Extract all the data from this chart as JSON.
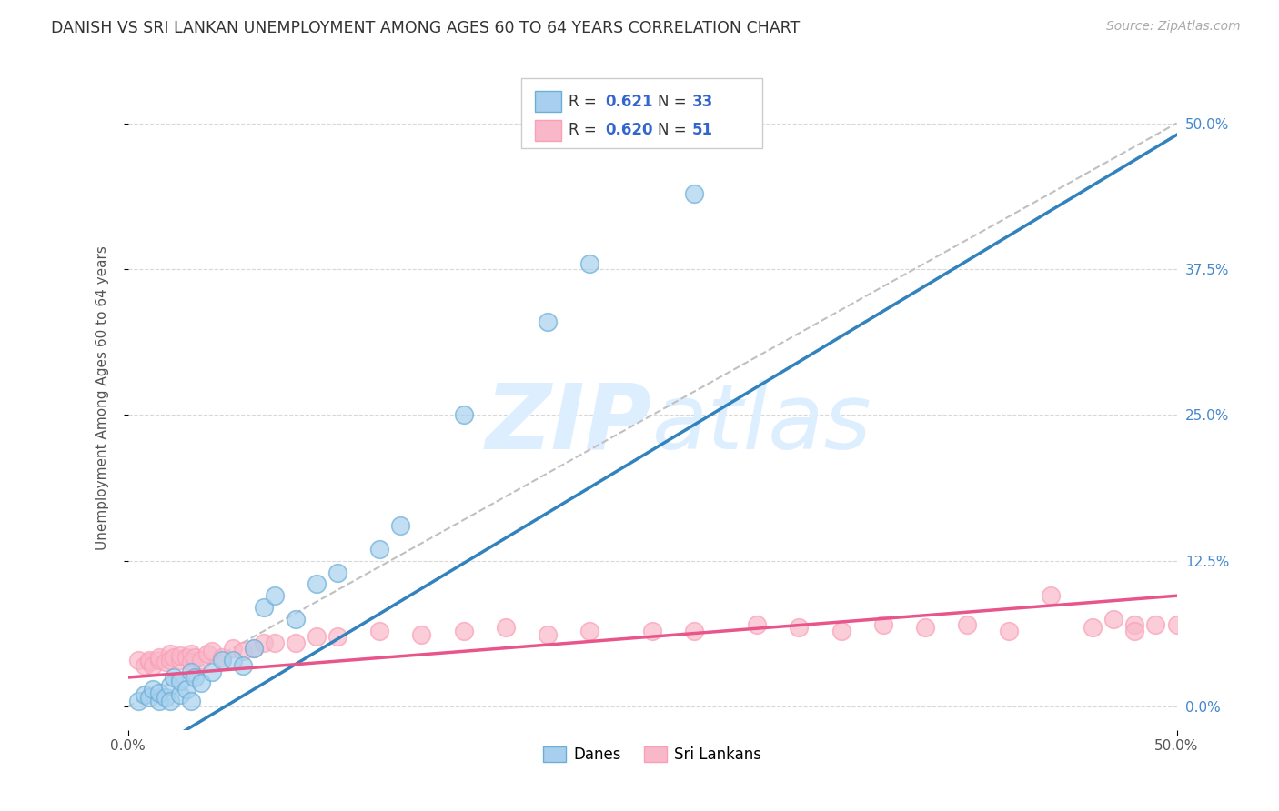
{
  "title": "DANISH VS SRI LANKAN UNEMPLOYMENT AMONG AGES 60 TO 64 YEARS CORRELATION CHART",
  "source": "Source: ZipAtlas.com",
  "ylabel": "Unemployment Among Ages 60 to 64 years",
  "xlim": [
    0,
    0.5
  ],
  "ylim": [
    -0.02,
    0.55
  ],
  "yticks": [
    0.0,
    0.125,
    0.25,
    0.375,
    0.5
  ],
  "ytick_labels": [
    "0.0%",
    "12.5%",
    "25.0%",
    "37.5%",
    "50.0%"
  ],
  "xtick_labels": [
    "0.0%",
    "50.0%"
  ],
  "danish_R": 0.621,
  "danish_N": 33,
  "srilankan_R": 0.62,
  "srilankan_N": 51,
  "danish_color": "#a8d0ee",
  "srilankan_color": "#f9b8ca",
  "danish_edge_color": "#6baed6",
  "srilankan_edge_color": "#fa9fb5",
  "danish_line_color": "#3182bd",
  "srilankan_line_color": "#e8558a",
  "diagonal_color": "#c0c0c0",
  "background_color": "#ffffff",
  "grid_color": "#d8d8d8",
  "right_tick_color": "#4488cc",
  "title_fontsize": 12.5,
  "source_fontsize": 10,
  "axis_label_fontsize": 11,
  "watermark_color": "#ddeeff",
  "danish_line_slope": 1.08,
  "danish_line_intercept": -0.05,
  "srilankan_line_slope": 0.14,
  "srilankan_line_intercept": 0.025,
  "danish_x": [
    0.005,
    0.008,
    0.01,
    0.012,
    0.015,
    0.015,
    0.018,
    0.02,
    0.02,
    0.022,
    0.025,
    0.025,
    0.028,
    0.03,
    0.03,
    0.032,
    0.035,
    0.04,
    0.045,
    0.05,
    0.055,
    0.06,
    0.065,
    0.07,
    0.08,
    0.09,
    0.1,
    0.12,
    0.13,
    0.16,
    0.2,
    0.22,
    0.27
  ],
  "danish_y": [
    0.005,
    0.01,
    0.008,
    0.015,
    0.005,
    0.012,
    0.008,
    0.018,
    0.005,
    0.025,
    0.01,
    0.022,
    0.015,
    0.03,
    0.005,
    0.025,
    0.02,
    0.03,
    0.04,
    0.04,
    0.035,
    0.05,
    0.085,
    0.095,
    0.075,
    0.105,
    0.115,
    0.135,
    0.155,
    0.25,
    0.33,
    0.38,
    0.44
  ],
  "srilankan_x": [
    0.005,
    0.008,
    0.01,
    0.01,
    0.012,
    0.015,
    0.015,
    0.018,
    0.02,
    0.02,
    0.022,
    0.025,
    0.025,
    0.028,
    0.03,
    0.03,
    0.032,
    0.035,
    0.038,
    0.04,
    0.045,
    0.05,
    0.055,
    0.06,
    0.065,
    0.07,
    0.08,
    0.09,
    0.1,
    0.12,
    0.14,
    0.16,
    0.18,
    0.2,
    0.22,
    0.25,
    0.27,
    0.3,
    0.32,
    0.34,
    0.36,
    0.38,
    0.4,
    0.42,
    0.44,
    0.46,
    0.47,
    0.48,
    0.48,
    0.49,
    0.5
  ],
  "srilankan_y": [
    0.04,
    0.035,
    0.038,
    0.04,
    0.035,
    0.04,
    0.042,
    0.038,
    0.045,
    0.04,
    0.042,
    0.04,
    0.044,
    0.042,
    0.045,
    0.038,
    0.042,
    0.04,
    0.045,
    0.048,
    0.042,
    0.05,
    0.048,
    0.05,
    0.055,
    0.055,
    0.055,
    0.06,
    0.06,
    0.065,
    0.062,
    0.065,
    0.068,
    0.062,
    0.065,
    0.065,
    0.065,
    0.07,
    0.068,
    0.065,
    0.07,
    0.068,
    0.07,
    0.065,
    0.095,
    0.068,
    0.075,
    0.07,
    0.065,
    0.07,
    0.07
  ]
}
